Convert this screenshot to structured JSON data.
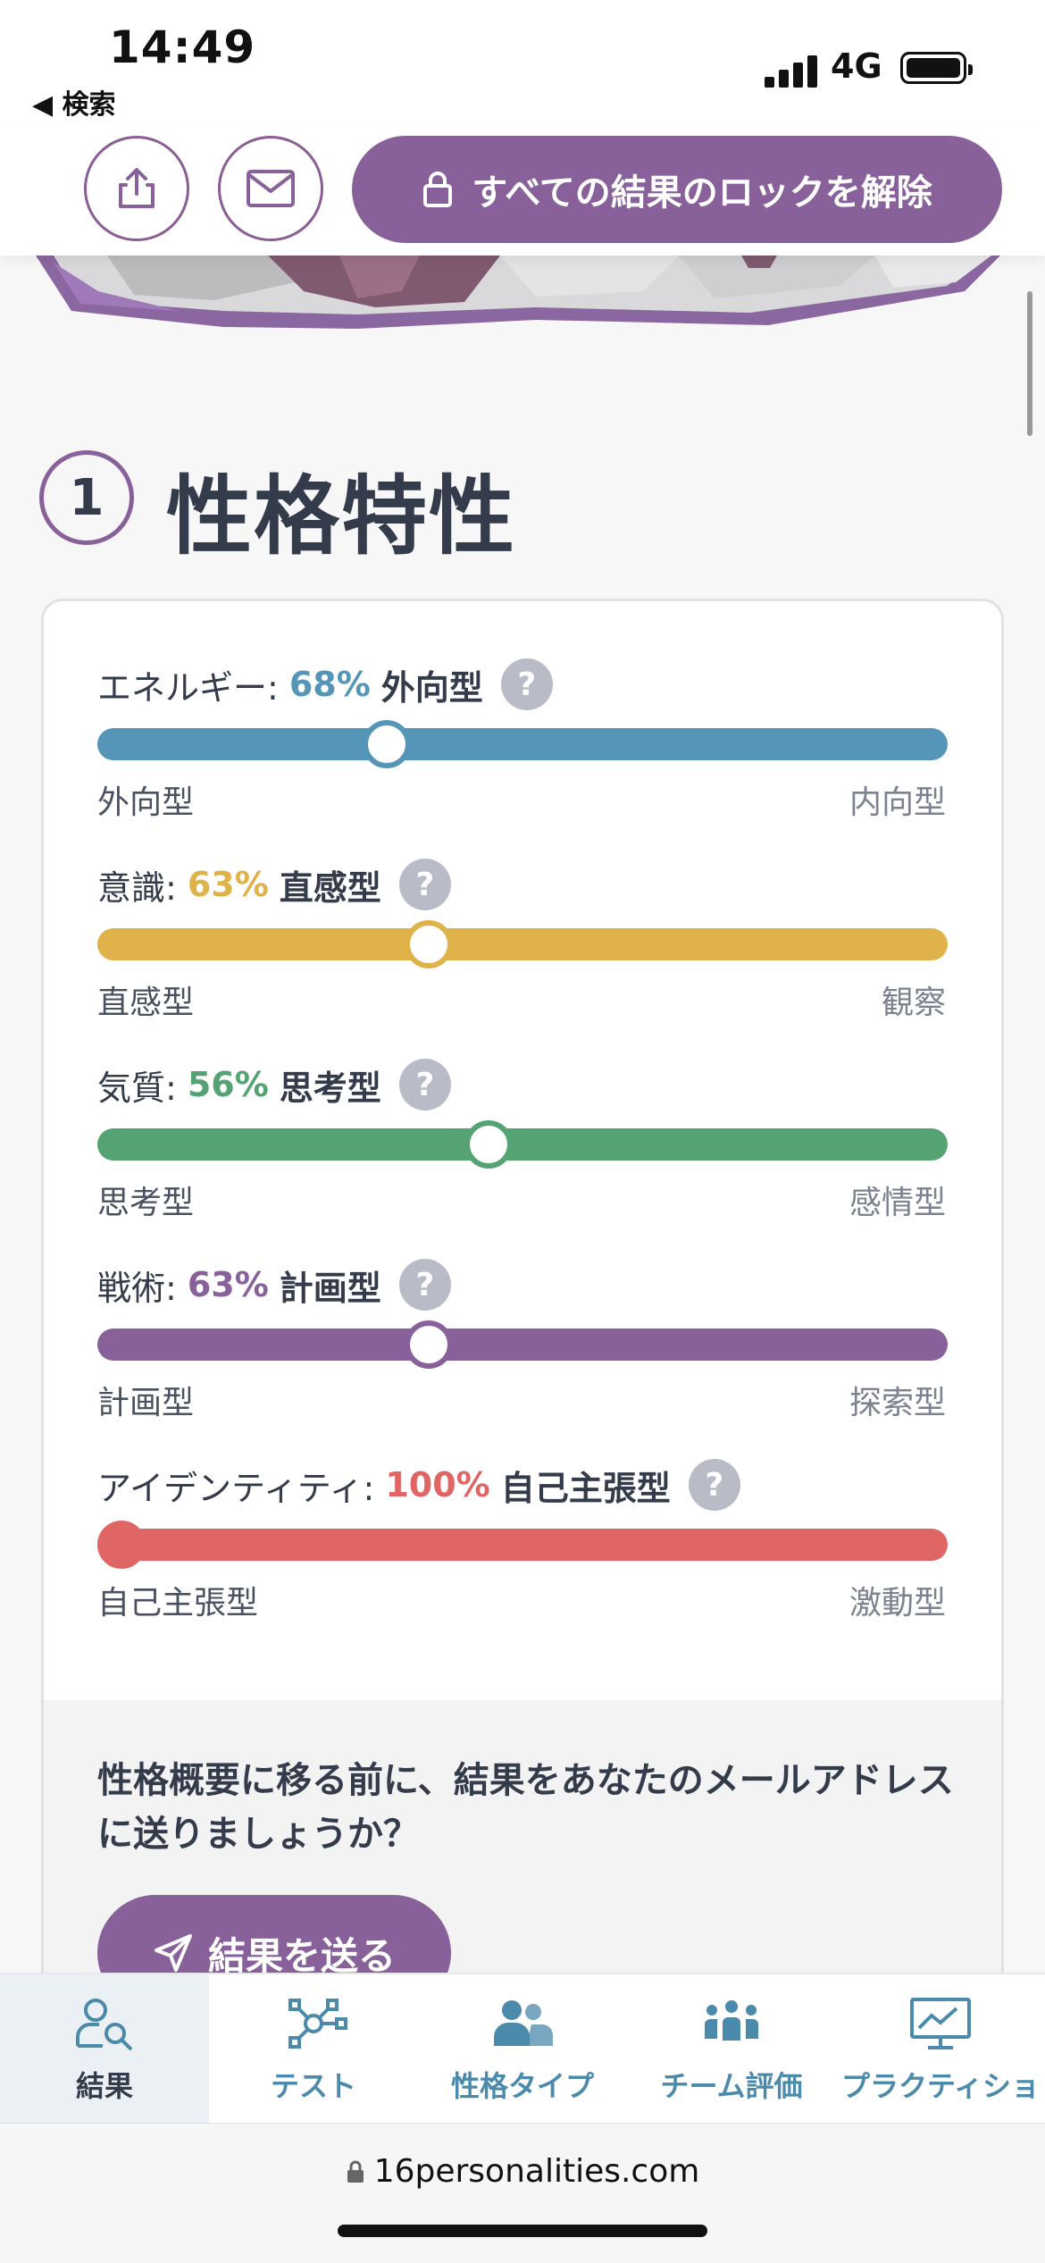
{
  "status": {
    "time": "14:49",
    "back_label": "◀ 検索",
    "network": "4G"
  },
  "actions": {
    "unlock_label": "すべての結果のロックを解除"
  },
  "section": {
    "number": "1",
    "title": "性格特性"
  },
  "traits": [
    {
      "label": "エネルギー:",
      "percent": "68%",
      "type": "外向型",
      "left": "外向型",
      "right": "内向型",
      "color": "#5596b8",
      "position": 0.34
    },
    {
      "label": "意識:",
      "percent": "63%",
      "type": "直感型",
      "left": "直感型",
      "right": "観察",
      "color": "#e0b24a",
      "position": 0.39
    },
    {
      "label": "気質:",
      "percent": "56%",
      "type": "思考型",
      "left": "思考型",
      "right": "感情型",
      "color": "#55a372",
      "position": 0.46
    },
    {
      "label": "戦術:",
      "percent": "63%",
      "type": "計画型",
      "left": "計画型",
      "right": "探索型",
      "color": "#88619a",
      "position": 0.39
    },
    {
      "label": "アイデンティティ:",
      "percent": "100%",
      "type": "自己主張型",
      "left": "自己主張型",
      "right": "激動型",
      "color": "#e06666",
      "position": 0.0
    }
  ],
  "email_prompt": {
    "text": "性格概要に移る前に、結果をあなたのメールアドレスに送りましょうか？",
    "button_label": "結果を送る"
  },
  "bottom_nav": [
    {
      "label": "結果",
      "icon": "results-icon",
      "active": true
    },
    {
      "label": "テスト",
      "icon": "test-icon",
      "active": false
    },
    {
      "label": "性格タイプ",
      "icon": "personality-types-icon",
      "active": false
    },
    {
      "label": "チーム評価",
      "icon": "team-icon",
      "active": false
    },
    {
      "label": "プラクティショ",
      "icon": "practitioner-icon",
      "active": false
    }
  ],
  "browser": {
    "url": "16personalities.com"
  }
}
